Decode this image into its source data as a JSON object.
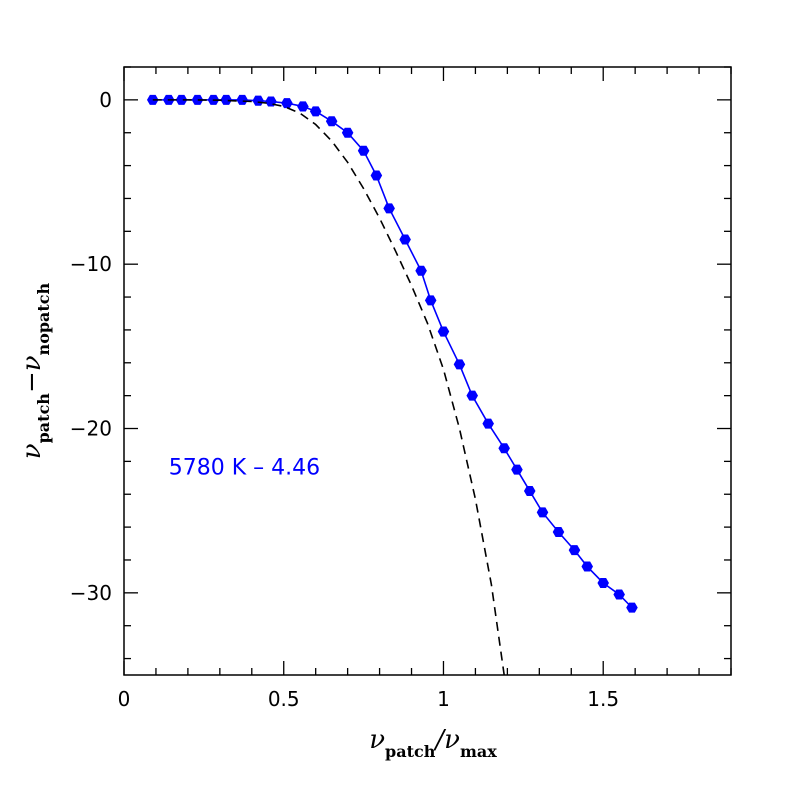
{
  "chart_data": {
    "type": "line",
    "title": "",
    "xlabel": {
      "symbol": "ν",
      "sub1": "patch",
      "slash": "/",
      "symbol2": "ν",
      "sub2": "max"
    },
    "ylabel": {
      "symbol": "ν",
      "sub1": "patch",
      "minus": "−",
      "symbol2": "ν",
      "sub2": "nopatch"
    },
    "xlim": [
      0,
      1.9
    ],
    "ylim": [
      -35,
      2
    ],
    "xticks_major": [
      0,
      0.5,
      1,
      1.5
    ],
    "xtick_labels": [
      "0",
      "0.5",
      "1",
      "1.5"
    ],
    "xticks_minor_step": 0.1,
    "yticks_major": [
      0,
      -10,
      -20,
      -30
    ],
    "ytick_labels": [
      "0",
      "−10",
      "−20",
      "−30"
    ],
    "yticks_minor_step": 2,
    "grid": false,
    "annotation": {
      "text": "5780 K – 4.46",
      "color": "#0000ff",
      "x": 0.14,
      "y": -22.3
    },
    "series": [
      {
        "style": "solid-with-markers",
        "color": "#0000ff",
        "x": [
          0.09,
          0.14,
          0.18,
          0.23,
          0.28,
          0.32,
          0.37,
          0.42,
          0.46,
          0.51,
          0.6,
          0.56,
          0.65,
          0.7,
          0.75,
          0.79,
          0.83,
          0.88,
          0.93,
          0.96,
          1.0,
          1.05,
          1.09,
          1.14,
          1.19,
          1.23,
          1.27,
          1.31,
          1.36,
          1.41,
          1.45,
          1.5,
          1.55,
          1.59
        ],
        "y": [
          0.0,
          0.0,
          0.0,
          0.0,
          0.0,
          0.0,
          0.0,
          -0.05,
          -0.1,
          -0.2,
          -0.7,
          -0.4,
          -1.3,
          -2.0,
          -3.1,
          -4.6,
          -6.6,
          -8.5,
          -10.4,
          -12.2,
          -14.1,
          -16.1,
          -18.0,
          -19.7,
          -21.2,
          -22.5,
          -23.8,
          -25.1,
          -26.3,
          -27.4,
          -28.4,
          -29.4,
          -30.1,
          -30.9
        ]
      },
      {
        "style": "dashed",
        "color": "#000000",
        "x": [
          0.09,
          0.2,
          0.3,
          0.4,
          0.45,
          0.5,
          0.55,
          0.6,
          0.65,
          0.7,
          0.75,
          0.8,
          0.85,
          0.9,
          0.95,
          1.0,
          1.05,
          1.1,
          1.15,
          1.19
        ],
        "y": [
          0.0,
          0.0,
          -0.02,
          -0.1,
          -0.2,
          -0.4,
          -0.8,
          -1.5,
          -2.5,
          -3.8,
          -5.4,
          -7.2,
          -9.2,
          -11.3,
          -13.6,
          -16.4,
          -20.0,
          -24.3,
          -29.5,
          -35.0
        ]
      }
    ]
  }
}
